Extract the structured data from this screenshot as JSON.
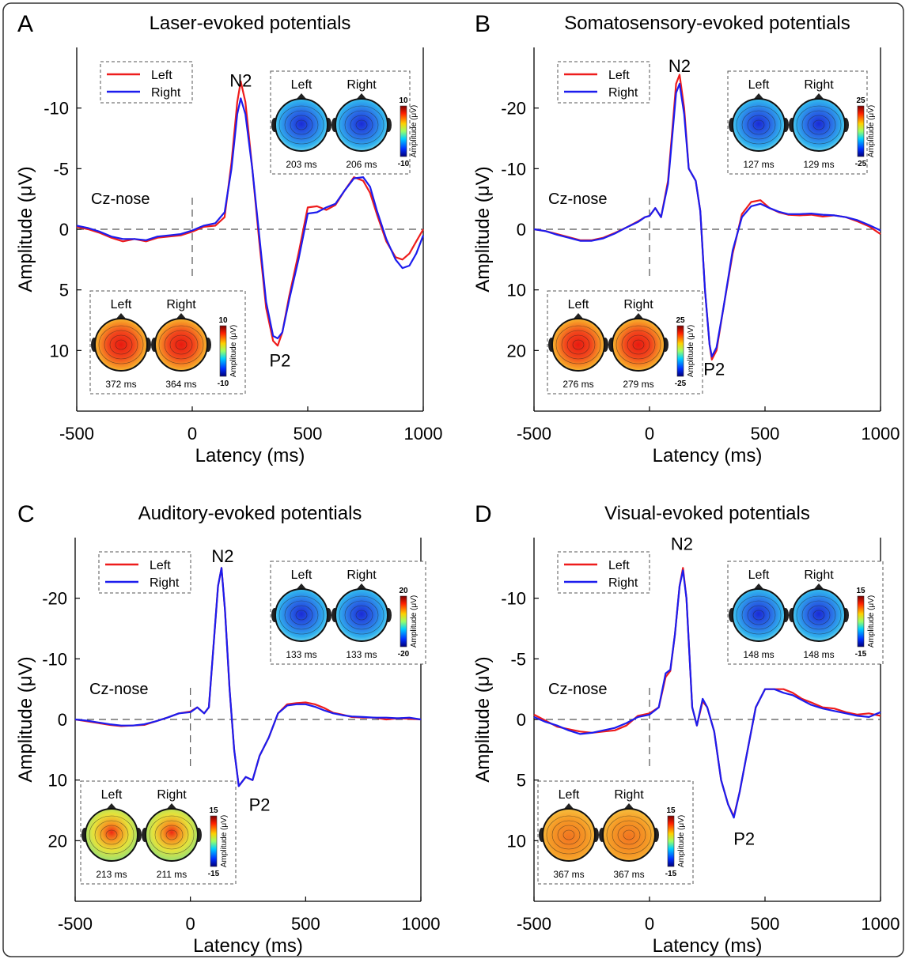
{
  "figure": {
    "border_color": "#333333",
    "line_colors": {
      "Left": "#ee1c1c",
      "Right": "#1c1cee"
    }
  },
  "chart_data": [
    {
      "panel": "A",
      "title": "Laser-evoked potentials",
      "type": "line",
      "xlabel": "Latency (ms)",
      "ylabel": "Amplitude (μV)",
      "xlim": [
        -500,
        1000
      ],
      "ylim": [
        -15,
        15
      ],
      "y_inverted": true,
      "xticks": [
        -500,
        0,
        500,
        1000
      ],
      "yticks": [
        -10,
        -5,
        0,
        5,
        10
      ],
      "legend": [
        "Left",
        "Right"
      ],
      "legend_position": "top-left",
      "reference_label": "Cz-nose",
      "peak_labels": [
        {
          "text": "N2",
          "x": 210,
          "y": -12.3
        },
        {
          "text": "P2",
          "x": 380,
          "y": 10.8
        }
      ],
      "series": [
        {
          "name": "Left",
          "x": [
            -500,
            -450,
            -400,
            -350,
            -300,
            -250,
            -200,
            -150,
            -100,
            -50,
            0,
            50,
            100,
            140,
            170,
            195,
            210,
            230,
            260,
            290,
            320,
            350,
            370,
            390,
            420,
            460,
            500,
            540,
            580,
            620,
            660,
            700,
            740,
            770,
            800,
            840,
            880,
            910,
            940,
            970,
            1000
          ],
          "y": [
            -0.2,
            0,
            0.3,
            0.7,
            1.0,
            0.8,
            1.0,
            0.7,
            0.6,
            0.5,
            0.2,
            -0.2,
            -0.3,
            -1.0,
            -5.5,
            -10.5,
            -12.2,
            -10.5,
            -5,
            1,
            6.5,
            9.2,
            9.6,
            8.5,
            5.5,
            2,
            -1.8,
            -1.9,
            -1.6,
            -2.0,
            -3.2,
            -4.3,
            -4.0,
            -3.0,
            -1.2,
            1.0,
            2.3,
            2.5,
            2.0,
            1,
            0
          ]
        },
        {
          "name": "Right",
          "x": [
            -500,
            -450,
            -400,
            -350,
            -300,
            -250,
            -200,
            -150,
            -100,
            -50,
            0,
            50,
            100,
            140,
            170,
            195,
            210,
            230,
            260,
            290,
            320,
            350,
            370,
            390,
            420,
            460,
            500,
            540,
            580,
            620,
            660,
            700,
            740,
            770,
            800,
            840,
            880,
            910,
            940,
            970,
            1000
          ],
          "y": [
            -0.3,
            -0.1,
            0.2,
            0.6,
            0.8,
            0.8,
            0.9,
            0.6,
            0.5,
            0.4,
            0.1,
            -0.3,
            -0.5,
            -1.4,
            -5.0,
            -9.5,
            -10.8,
            -9.5,
            -5.0,
            0.5,
            6.0,
            8.8,
            9.0,
            8.5,
            5.8,
            2.5,
            -1.3,
            -1.4,
            -1.8,
            -2.1,
            -3.2,
            -4.2,
            -4.3,
            -3.5,
            -1.5,
            0.8,
            2.5,
            3.2,
            3.0,
            2,
            0.5
          ]
        }
      ],
      "topomaps": [
        {
          "position": "top-right",
          "polarity": "negative",
          "labels": [
            "Left",
            "Right"
          ],
          "times": [
            "203 ms",
            "206 ms"
          ],
          "colorbar_max": "10",
          "colorbar_min": "-10",
          "colorbar_label": "Amplitude (μV)"
        },
        {
          "position": "bottom-left",
          "polarity": "positive",
          "labels": [
            "Left",
            "Right"
          ],
          "times": [
            "372 ms",
            "364 ms"
          ],
          "colorbar_max": "10",
          "colorbar_min": "-10",
          "colorbar_label": "Amplitude (μV)"
        }
      ]
    },
    {
      "panel": "B",
      "title": "Somatosensory-evoked potentials",
      "type": "line",
      "xlabel": "Latency (ms)",
      "ylabel": "Amplitude (μV)",
      "xlim": [
        -500,
        1000
      ],
      "ylim": [
        -30,
        30
      ],
      "y_inverted": true,
      "xticks": [
        -500,
        0,
        500,
        1000
      ],
      "yticks": [
        -20,
        -10,
        0,
        10,
        20
      ],
      "legend": [
        "Left",
        "Right"
      ],
      "legend_position": "top-left",
      "reference_label": "Cz-nose",
      "peak_labels": [
        {
          "text": "N2",
          "x": 130,
          "y": -27
        },
        {
          "text": "P2",
          "x": 280,
          "y": 23
        }
      ],
      "series": [
        {
          "name": "Left",
          "x": [
            -500,
            -450,
            -400,
            -350,
            -300,
            -250,
            -200,
            -150,
            -100,
            -50,
            -20,
            0,
            25,
            50,
            80,
            100,
            115,
            130,
            150,
            170,
            200,
            220,
            240,
            260,
            270,
            290,
            320,
            360,
            400,
            440,
            480,
            520,
            560,
            600,
            650,
            700,
            750,
            800,
            850,
            900,
            950,
            1000
          ],
          "y": [
            0,
            0.3,
            0.8,
            1.3,
            1.8,
            1.8,
            1.4,
            0.6,
            -0.3,
            -1.3,
            -2,
            -2.2,
            -3.5,
            -2,
            -8,
            -17,
            -24,
            -25.5,
            -20,
            -10,
            -8,
            -3,
            10,
            19,
            21.5,
            20,
            13,
            4,
            -2.5,
            -4.5,
            -4.8,
            -3.5,
            -2.8,
            -2.4,
            -2.3,
            -2.4,
            -2.1,
            -2.3,
            -2.0,
            -1.3,
            -0.5,
            0.8
          ]
        },
        {
          "name": "Right",
          "x": [
            -500,
            -450,
            -400,
            -350,
            -300,
            -250,
            -200,
            -150,
            -100,
            -50,
            -20,
            0,
            25,
            50,
            80,
            100,
            115,
            130,
            150,
            170,
            200,
            220,
            240,
            260,
            270,
            290,
            320,
            360,
            400,
            440,
            480,
            520,
            560,
            600,
            650,
            700,
            750,
            800,
            850,
            900,
            950,
            1000
          ],
          "y": [
            0,
            0.3,
            0.9,
            1.4,
            1.9,
            1.9,
            1.5,
            0.7,
            -0.3,
            -1.2,
            -2,
            -2.2,
            -3.5,
            -2,
            -7.5,
            -16,
            -22.5,
            -24,
            -19,
            -10,
            -8,
            -3,
            10,
            19,
            21,
            19.5,
            13,
            3.5,
            -2,
            -3.8,
            -4.2,
            -3.5,
            -2.9,
            -2.5,
            -2.5,
            -2.6,
            -2.4,
            -2.3,
            -2.0,
            -1.5,
            -0.7,
            0.2
          ]
        }
      ],
      "topomaps": [
        {
          "position": "top-right",
          "polarity": "negative",
          "labels": [
            "Left",
            "Right"
          ],
          "times": [
            "127 ms",
            "129 ms"
          ],
          "colorbar_max": "25",
          "colorbar_min": "-25",
          "colorbar_label": "Amplitude (μV)"
        },
        {
          "position": "bottom-left",
          "polarity": "positive",
          "labels": [
            "Left",
            "Right"
          ],
          "times": [
            "276 ms",
            "279 ms"
          ],
          "colorbar_max": "25",
          "colorbar_min": "-25",
          "colorbar_label": "Amplitude (μV)"
        }
      ]
    },
    {
      "panel": "C",
      "title": "Auditory-evoked potentials",
      "type": "line",
      "xlabel": "Latency (ms)",
      "ylabel": "Amplitude (μV)",
      "xlim": [
        -500,
        1000
      ],
      "ylim": [
        -30,
        30
      ],
      "y_inverted": true,
      "xticks": [
        -500,
        0,
        500,
        1000
      ],
      "yticks": [
        -20,
        -10,
        0,
        10,
        20
      ],
      "legend": [
        "Left",
        "Right"
      ],
      "legend_position": "top-left",
      "reference_label": "Cz-nose",
      "peak_labels": [
        {
          "text": "N2",
          "x": 140,
          "y": -27
        },
        {
          "text": "P2",
          "x": 300,
          "y": 14
        }
      ],
      "series": [
        {
          "name": "Left",
          "x": [
            -500,
            -450,
            -400,
            -350,
            -300,
            -250,
            -200,
            -150,
            -100,
            -50,
            0,
            30,
            60,
            80,
            100,
            120,
            135,
            150,
            170,
            190,
            210,
            240,
            270,
            300,
            340,
            380,
            420,
            460,
            500,
            540,
            580,
            620,
            660,
            700,
            750,
            800,
            850,
            900,
            950,
            1000
          ],
          "y": [
            0,
            0.3,
            0.6,
            0.9,
            1.1,
            1.0,
            0.9,
            0.3,
            -0.3,
            -1.0,
            -1.3,
            -2,
            -1,
            -2,
            -12,
            -22,
            -25,
            -18,
            -5,
            5,
            11,
            9.5,
            10,
            6,
            3,
            -1,
            -2.5,
            -2.7,
            -2.8,
            -2.5,
            -1.9,
            -1.1,
            -0.8,
            -0.4,
            -0.3,
            -0.3,
            0,
            -0.2,
            -0.1,
            0
          ]
        },
        {
          "name": "Right",
          "x": [
            -500,
            -450,
            -400,
            -350,
            -300,
            -250,
            -200,
            -150,
            -100,
            -50,
            0,
            30,
            60,
            80,
            100,
            120,
            135,
            150,
            170,
            190,
            210,
            240,
            270,
            300,
            340,
            380,
            420,
            460,
            500,
            540,
            580,
            620,
            660,
            700,
            750,
            800,
            850,
            900,
            950,
            1000
          ],
          "y": [
            0,
            0.2,
            0.5,
            0.8,
            1.0,
            1.0,
            0.8,
            0.3,
            -0.3,
            -1.0,
            -1.2,
            -2,
            -1,
            -2,
            -12,
            -22,
            -25,
            -18,
            -5,
            5,
            11,
            9.5,
            10,
            6,
            3,
            -1,
            -2.3,
            -2.5,
            -2.5,
            -2.1,
            -1.5,
            -1.0,
            -0.7,
            -0.5,
            -0.4,
            -0.3,
            -0.3,
            -0.2,
            -0.3,
            0
          ]
        }
      ],
      "topomaps": [
        {
          "position": "top-right",
          "polarity": "negative",
          "labels": [
            "Left",
            "Right"
          ],
          "times": [
            "133 ms",
            "133 ms"
          ],
          "colorbar_max": "20",
          "colorbar_min": "-20",
          "colorbar_label": "Amplitude (μV)"
        },
        {
          "position": "bottom-left",
          "polarity": "positive-mixed",
          "labels": [
            "Left",
            "Right"
          ],
          "times": [
            "213 ms",
            "211 ms"
          ],
          "colorbar_max": "15",
          "colorbar_min": "-15",
          "colorbar_label": "Amplitude (μV)"
        }
      ]
    },
    {
      "panel": "D",
      "title": "Visual-evoked potentials",
      "type": "line",
      "xlabel": "Latency (ms)",
      "ylabel": "Amplitude (μV)",
      "xlim": [
        -500,
        1000
      ],
      "ylim": [
        -15,
        15
      ],
      "y_inverted": true,
      "xticks": [
        -500,
        0,
        500,
        1000
      ],
      "yticks": [
        -10,
        -5,
        0,
        5,
        10
      ],
      "legend": [
        "Left",
        "Right"
      ],
      "legend_position": "top-left",
      "reference_label": "Cz-nose",
      "peak_labels": [
        {
          "text": "N2",
          "x": 140,
          "y": -14.5
        },
        {
          "text": "P2",
          "x": 410,
          "y": 9.8
        }
      ],
      "series": [
        {
          "name": "Left",
          "x": [
            -500,
            -450,
            -400,
            -350,
            -300,
            -250,
            -200,
            -150,
            -100,
            -50,
            0,
            40,
            70,
            90,
            110,
            130,
            145,
            160,
            185,
            205,
            230,
            250,
            280,
            310,
            340,
            365,
            390,
            420,
            460,
            500,
            540,
            580,
            620,
            660,
            700,
            750,
            800,
            850,
            900,
            950,
            1000
          ],
          "y": [
            -0.4,
            0.1,
            0.6,
            0.8,
            1.0,
            1.1,
            1.0,
            0.9,
            0.5,
            -0.3,
            -0.5,
            -1,
            -3.5,
            -4,
            -7,
            -11,
            -12.5,
            -10,
            -1,
            0.5,
            -1.5,
            -1,
            1,
            5,
            7,
            8,
            6,
            3,
            -1,
            -2.5,
            -2.5,
            -2.5,
            -2.2,
            -1.7,
            -1.4,
            -1.0,
            -0.9,
            -0.6,
            -0.4,
            -0.5,
            -0.3
          ]
        },
        {
          "name": "Right",
          "x": [
            -500,
            -450,
            -400,
            -350,
            -300,
            -250,
            -200,
            -150,
            -100,
            -50,
            0,
            40,
            70,
            90,
            110,
            130,
            145,
            160,
            185,
            205,
            230,
            250,
            280,
            310,
            340,
            365,
            390,
            420,
            460,
            500,
            540,
            580,
            620,
            660,
            700,
            750,
            800,
            850,
            900,
            950,
            1000
          ],
          "y": [
            -0.2,
            0.2,
            0.5,
            0.9,
            1.2,
            1.1,
            0.9,
            0.7,
            0.3,
            -0.2,
            -0.4,
            -1,
            -3.8,
            -4.1,
            -7,
            -11,
            -12.3,
            -10,
            -1,
            0.5,
            -1.7,
            -1,
            1,
            5,
            7,
            8.1,
            6,
            3,
            -1,
            -2.5,
            -2.5,
            -2.2,
            -2.0,
            -1.6,
            -1.2,
            -0.9,
            -0.7,
            -0.5,
            -0.3,
            -0.2,
            -0.6
          ]
        }
      ],
      "topomaps": [
        {
          "position": "top-right",
          "polarity": "negative",
          "labels": [
            "Left",
            "Right"
          ],
          "times": [
            "148 ms",
            "148 ms"
          ],
          "colorbar_max": "15",
          "colorbar_min": "-15",
          "colorbar_label": "Amplitude (μV)"
        },
        {
          "position": "bottom-left",
          "polarity": "positive-broad",
          "labels": [
            "Left",
            "Right"
          ],
          "times": [
            "367 ms",
            "367 ms"
          ],
          "colorbar_max": "15",
          "colorbar_min": "-15",
          "colorbar_label": "Amplitude (μV)"
        }
      ]
    }
  ]
}
